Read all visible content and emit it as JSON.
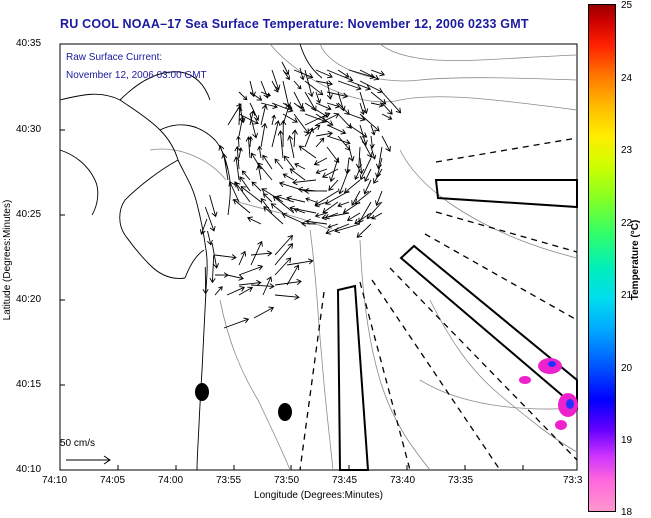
{
  "title": "RU COOL  NOAA–17  Sea Surface Temperature:  November 12, 2006 0233 GMT",
  "annotation": {
    "line1": "Raw Surface Current:",
    "line2": "November 12, 2006 03:00 GMT"
  },
  "scale_label": "50 cm/s",
  "axes": {
    "xlabel": "Longitude (Degrees:Minutes)",
    "ylabel": "Latitude (Degrees:Minutes)",
    "xticks": [
      "74:10",
      "74:05",
      "74:00",
      "73:55",
      "73:50",
      "73:45",
      "73:40",
      "73:35",
      "73:3"
    ],
    "yticks": [
      "40:35",
      "40:30",
      "40:25",
      "40:20",
      "40:15",
      "40:10"
    ]
  },
  "colorbar": {
    "label": "Temperature (°C)",
    "ticks": [
      "25",
      "24",
      "23",
      "22",
      "21",
      "20",
      "19",
      "18"
    ],
    "range": [
      18,
      25
    ]
  },
  "colors": {
    "title": "#1a1aa0",
    "annotation": "#1a1aa0",
    "sst_patch": "#ee22cc",
    "sst_core": "#2233ff"
  }
}
